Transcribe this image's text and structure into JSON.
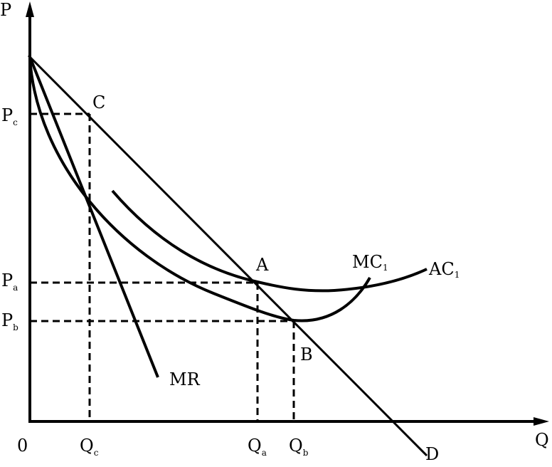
{
  "axes": {
    "y_label": "P",
    "x_label": "Q",
    "origin": "0"
  },
  "price_labels": [
    {
      "main": "P",
      "sub": "c"
    },
    {
      "main": "P",
      "sub": "a"
    },
    {
      "main": "P",
      "sub": "b"
    }
  ],
  "quantity_labels": [
    {
      "main": "Q",
      "sub": "c"
    },
    {
      "main": "Q",
      "sub": "a"
    },
    {
      "main": "Q",
      "sub": "b"
    }
  ],
  "points": {
    "c": "C",
    "a": "A",
    "b": "B"
  },
  "curves": {
    "demand": "D",
    "marginal_revenue": "MR",
    "marginal_cost": {
      "main": "MC",
      "sub": "1"
    },
    "average_cost": {
      "main": "AC",
      "sub": "1"
    }
  }
}
